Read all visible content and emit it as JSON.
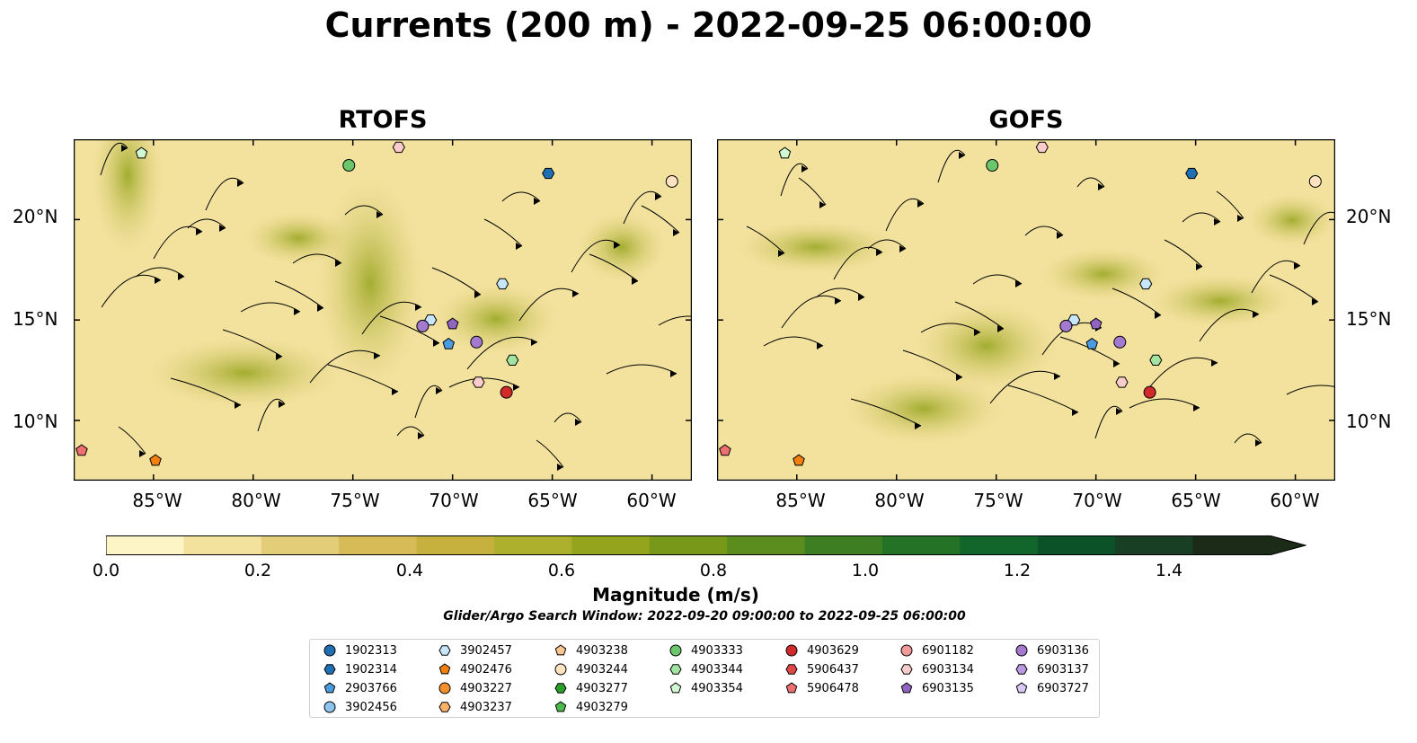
{
  "figure": {
    "title": "Currents (200 m) - 2022-09-25 06:00:00",
    "panels": [
      {
        "title": "RTOFS"
      },
      {
        "title": "GOFS"
      }
    ],
    "latitude_labels": [
      "20°N",
      "15°N",
      "10°N"
    ],
    "longitude_labels": [
      "85°W",
      "80°W",
      "75°W",
      "70°W",
      "65°W",
      "60°W"
    ],
    "colors": {
      "ocean_shallow": "#95b7e2",
      "land": "#cfb18b",
      "eez_lines": "#e8000b",
      "contours": "#555555"
    }
  },
  "colorbar": {
    "label": "Magnitude (m/s)",
    "ticks": [
      "0.0",
      "0.2",
      "0.4",
      "0.6",
      "0.8",
      "1.0",
      "1.2",
      "1.4"
    ],
    "range": [
      0,
      1.5
    ],
    "bins": 15,
    "extend": "max",
    "colors": [
      "#fdf5c5",
      "#f2e29e",
      "#e4cd78",
      "#d6bb56",
      "#c6b03e",
      "#adb02c",
      "#94a41c",
      "#78981a",
      "#5a8c1e",
      "#3e7e22",
      "#247226",
      "#12662c",
      "#0c5228",
      "#183e24",
      "#1b2b18"
    ]
  },
  "search_window": "Glider/Argo Search Window: 2022-09-20 09:00:00 to 2022-09-25 06:00:00",
  "legend": {
    "items": [
      {
        "id": "1902313",
        "color": "#1f6fb4",
        "marker": "circle"
      },
      {
        "id": "1902314",
        "color": "#1f6fb4",
        "marker": "hexagon"
      },
      {
        "id": "2903766",
        "color": "#4a9be0",
        "marker": "pentagon"
      },
      {
        "id": "3902456",
        "color": "#8ec3ee",
        "marker": "circle"
      },
      {
        "id": "3902457",
        "color": "#c7e6fa",
        "marker": "hexagon"
      },
      {
        "id": "4902476",
        "color": "#f27f0e",
        "marker": "pentagon"
      },
      {
        "id": "4903227",
        "color": "#f5902c",
        "marker": "circle"
      },
      {
        "id": "4903237",
        "color": "#f9b266",
        "marker": "hexagon"
      },
      {
        "id": "4903238",
        "color": "#fbc58e",
        "marker": "pentagon"
      },
      {
        "id": "4903244",
        "color": "#fde3c2",
        "marker": "circle"
      },
      {
        "id": "4903277",
        "color": "#2a9e2a",
        "marker": "hexagon"
      },
      {
        "id": "4903279",
        "color": "#4cba4c",
        "marker": "pentagon"
      },
      {
        "id": "4903333",
        "color": "#6cc66c",
        "marker": "circle"
      },
      {
        "id": "4903344",
        "color": "#a2e4a2",
        "marker": "hexagon"
      },
      {
        "id": "4903354",
        "color": "#d2f8d2",
        "marker": "pentagon"
      },
      {
        "id": "4903629",
        "color": "#d22a2a",
        "marker": "circle"
      },
      {
        "id": "5906437",
        "color": "#e04848",
        "marker": "hexagon"
      },
      {
        "id": "5906478",
        "color": "#ee6f6f",
        "marker": "pentagon"
      },
      {
        "id": "6901182",
        "color": "#f29a9a",
        "marker": "circle"
      },
      {
        "id": "6903134",
        "color": "#fbcccc",
        "marker": "hexagon"
      },
      {
        "id": "6903135",
        "color": "#9164c2",
        "marker": "pentagon"
      },
      {
        "id": "6903136",
        "color": "#a37ad0",
        "marker": "circle"
      },
      {
        "id": "6903137",
        "color": "#bb98e0",
        "marker": "hexagon"
      },
      {
        "id": "6903727",
        "color": "#dcc8f2",
        "marker": "pentagon"
      }
    ]
  },
  "chart_data": {
    "type": "map",
    "map_extent": {
      "lon": [
        -89,
        -58
      ],
      "lat": [
        7,
        24
      ]
    },
    "panels": [
      "RTOFS",
      "GOFS"
    ],
    "floats": [
      {
        "id": "1902314",
        "lon": -65.2,
        "lat": 22.3
      },
      {
        "id": "6903134",
        "lon": -72.7,
        "lat": 23.6
      },
      {
        "id": "4903333",
        "lon": -75.2,
        "lat": 22.7
      },
      {
        "id": "4903354",
        "lon": -85.6,
        "lat": 23.3
      },
      {
        "id": "4903244",
        "lon": -59.0,
        "lat": 21.9
      },
      {
        "id": "3902457",
        "lon": -67.5,
        "lat": 16.8
      },
      {
        "id": "3902457",
        "lon": -71.1,
        "lat": 15.0
      },
      {
        "id": "6903136",
        "lon": -71.5,
        "lat": 14.7
      },
      {
        "id": "6903135",
        "lon": -70.0,
        "lat": 14.8
      },
      {
        "id": "2903766",
        "lon": -70.2,
        "lat": 13.8
      },
      {
        "id": "6903136",
        "lon": -68.8,
        "lat": 13.9
      },
      {
        "id": "4903344",
        "lon": -67.0,
        "lat": 13.0
      },
      {
        "id": "6903134",
        "lon": -68.7,
        "lat": 11.9
      },
      {
        "id": "4903629",
        "lon": -67.3,
        "lat": 11.4
      },
      {
        "id": "5906478",
        "lon": -88.6,
        "lat": 8.5
      },
      {
        "id": "4902476",
        "lon": -84.9,
        "lat": 8.0
      }
    ]
  }
}
